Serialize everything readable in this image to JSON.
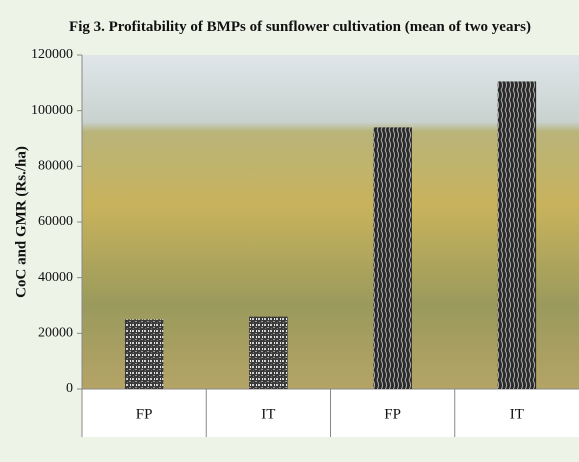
{
  "chart_data": {
    "type": "bar",
    "title": "Fig 3. Profitability of BMPs of sunflower cultivation (mean of two years)",
    "y_label": "CoC and GMR (Rs./ha)",
    "categories": [
      "FP",
      "IT",
      "FP",
      "IT"
    ],
    "values": [
      25000,
      26000,
      94000,
      110500
    ],
    "ylim": [
      0,
      120000
    ],
    "yticks": [
      0,
      20000,
      40000,
      60000,
      80000,
      100000,
      120000
    ],
    "grid": false
  }
}
